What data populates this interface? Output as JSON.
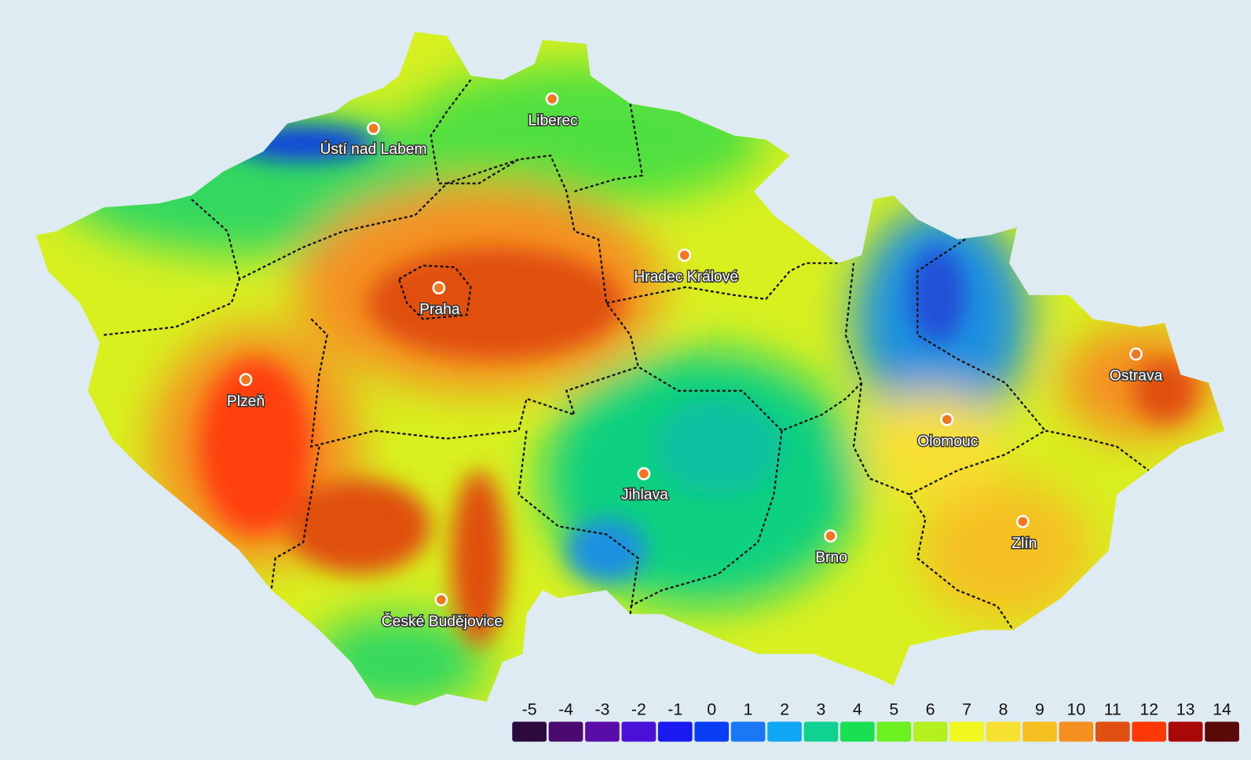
{
  "map": {
    "cities": [
      "Liberec",
      "Ústí nad Labem",
      "Hradec Králové",
      "Praha",
      "Plzeň",
      "Ostrava",
      "Olomouc",
      "Jihlava",
      "Zlín",
      "Brno",
      "České Budějovice"
    ],
    "legend": {
      "values": [
        -5,
        -4,
        -3,
        -2,
        -1,
        0,
        1,
        2,
        3,
        4,
        5,
        6,
        7,
        8,
        9,
        10,
        11,
        12,
        13,
        14
      ],
      "colors": [
        "#2d0a3e",
        "#4b0a6e",
        "#5a0ca8",
        "#4a10d8",
        "#1a1af0",
        "#0a3ef5",
        "#1a78f5",
        "#10a8f5",
        "#10d290",
        "#18e050",
        "#6cf020",
        "#b4f020",
        "#f0f820",
        "#f8e030",
        "#f5c020",
        "#f59020",
        "#e05010",
        "#ff3808",
        "#a80808",
        "#5a0808"
      ]
    }
  }
}
